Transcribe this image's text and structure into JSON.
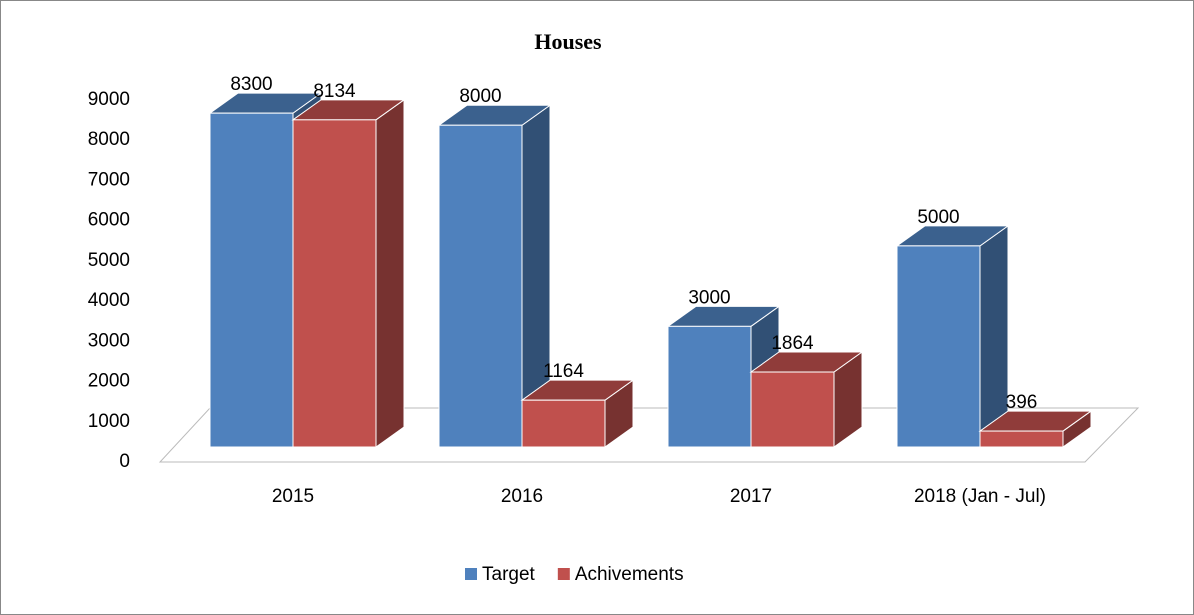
{
  "chart_data": {
    "type": "bar3d",
    "title": "Houses",
    "categories": [
      "2015",
      "2016",
      "2017",
      "2018 (Jan - Jul)"
    ],
    "series": [
      {
        "name": "Target",
        "color": "#4f81bd",
        "values": [
          8300,
          8000,
          3000,
          5000
        ]
      },
      {
        "name": "Achivements",
        "color": "#c0504d",
        "values": [
          8134,
          1164,
          1864,
          396
        ]
      }
    ],
    "ylim": [
      0,
      9000
    ],
    "yticks": [
      0,
      1000,
      2000,
      3000,
      4000,
      5000,
      6000,
      7000,
      8000,
      9000
    ],
    "grid": false,
    "legend": "bottom"
  }
}
